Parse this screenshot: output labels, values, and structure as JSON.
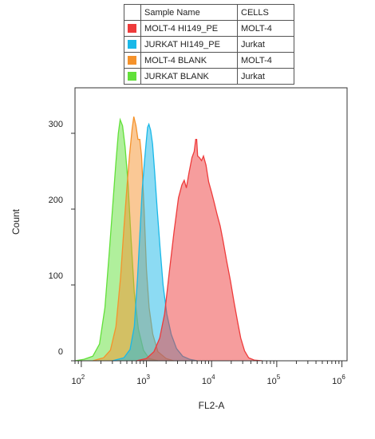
{
  "legend": {
    "header": {
      "sample_name": "Sample Name",
      "cells": "CELLS"
    },
    "rows": [
      {
        "name": "MOLT-4 HI149_PE",
        "cells": "MOLT-4",
        "color": "#ee3b3b"
      },
      {
        "name": "JURKAT HI149_PE",
        "cells": "Jurkat",
        "color": "#19b8e8"
      },
      {
        "name": "MOLT-4 BLANK",
        "cells": "MOLT-4",
        "color": "#f5922b"
      },
      {
        "name": "JURKAT BLANK",
        "cells": "Jurkat",
        "color": "#62e03a"
      }
    ]
  },
  "chart_data": {
    "type": "area",
    "xlabel": "FL2-A",
    "ylabel": "Count",
    "x_scale": "log",
    "xlim": [
      80,
      1200000
    ],
    "ylim": [
      0,
      360
    ],
    "x_ticks": [
      {
        "base": "10",
        "exp": "2",
        "value": 100
      },
      {
        "base": "10",
        "exp": "3",
        "value": 1000
      },
      {
        "base": "10",
        "exp": "4",
        "value": 10000
      },
      {
        "base": "10",
        "exp": "5",
        "value": 100000
      },
      {
        "base": "10",
        "exp": "6",
        "value": 1000000
      }
    ],
    "y_ticks": [
      0,
      100,
      200,
      300
    ],
    "series": [
      {
        "name": "JURKAT BLANK",
        "color": "#62e03a",
        "points": [
          [
            80,
            0
          ],
          [
            110,
            2
          ],
          [
            150,
            6
          ],
          [
            190,
            22
          ],
          [
            230,
            70
          ],
          [
            270,
            145
          ],
          [
            310,
            215
          ],
          [
            340,
            262
          ],
          [
            370,
            300
          ],
          [
            395,
            318
          ],
          [
            430,
            310
          ],
          [
            470,
            282
          ],
          [
            520,
            235
          ],
          [
            580,
            160
          ],
          [
            650,
            90
          ],
          [
            750,
            42
          ],
          [
            900,
            14
          ],
          [
            1100,
            3
          ],
          [
            1500,
            0
          ]
        ]
      },
      {
        "name": "MOLT-4 BLANK",
        "color": "#f5922b",
        "points": [
          [
            150,
            0
          ],
          [
            220,
            4
          ],
          [
            280,
            14
          ],
          [
            340,
            45
          ],
          [
            400,
            110
          ],
          [
            450,
            175
          ],
          [
            500,
            228
          ],
          [
            550,
            272
          ],
          [
            600,
            305
          ],
          [
            640,
            322
          ],
          [
            690,
            310
          ],
          [
            740,
            292
          ],
          [
            790,
            292
          ],
          [
            840,
            270
          ],
          [
            920,
            200
          ],
          [
            1000,
            120
          ],
          [
            1100,
            70
          ],
          [
            1250,
            35
          ],
          [
            1500,
            12
          ],
          [
            2000,
            3
          ],
          [
            2600,
            0
          ]
        ]
      },
      {
        "name": "JURKAT HI149_PE",
        "color": "#19b8e8",
        "points": [
          [
            300,
            0
          ],
          [
            450,
            4
          ],
          [
            560,
            15
          ],
          [
            650,
            45
          ],
          [
            730,
            110
          ],
          [
            800,
            175
          ],
          [
            860,
            225
          ],
          [
            930,
            262
          ],
          [
            990,
            288
          ],
          [
            1040,
            308
          ],
          [
            1090,
            312
          ],
          [
            1160,
            304
          ],
          [
            1240,
            286
          ],
          [
            1340,
            248
          ],
          [
            1460,
            200
          ],
          [
            1620,
            148
          ],
          [
            1800,
            100
          ],
          [
            2050,
            62
          ],
          [
            2400,
            35
          ],
          [
            2900,
            16
          ],
          [
            3600,
            6
          ],
          [
            4600,
            2
          ],
          [
            6000,
            0
          ]
        ]
      },
      {
        "name": "MOLT-4 HI149_PE",
        "color": "#ee3b3b",
        "points": [
          [
            700,
            0
          ],
          [
            1000,
            3
          ],
          [
            1300,
            12
          ],
          [
            1600,
            30
          ],
          [
            1900,
            62
          ],
          [
            2250,
            118
          ],
          [
            2650,
            170
          ],
          [
            3100,
            215
          ],
          [
            3500,
            232
          ],
          [
            3800,
            238
          ],
          [
            4100,
            228
          ],
          [
            4500,
            248
          ],
          [
            5000,
            268
          ],
          [
            5400,
            276
          ],
          [
            5700,
            292
          ],
          [
            5900,
            292
          ],
          [
            6100,
            270
          ],
          [
            6500,
            268
          ],
          [
            7000,
            264
          ],
          [
            7500,
            270
          ],
          [
            8200,
            258
          ],
          [
            9000,
            236
          ],
          [
            10000,
            222
          ],
          [
            11000,
            208
          ],
          [
            12200,
            192
          ],
          [
            13500,
            178
          ],
          [
            15000,
            158
          ],
          [
            17000,
            132
          ],
          [
            19500,
            105
          ],
          [
            22000,
            78
          ],
          [
            25000,
            52
          ],
          [
            28000,
            30
          ],
          [
            32000,
            13
          ],
          [
            37000,
            4
          ],
          [
            45000,
            1
          ],
          [
            60000,
            0
          ]
        ]
      }
    ]
  }
}
